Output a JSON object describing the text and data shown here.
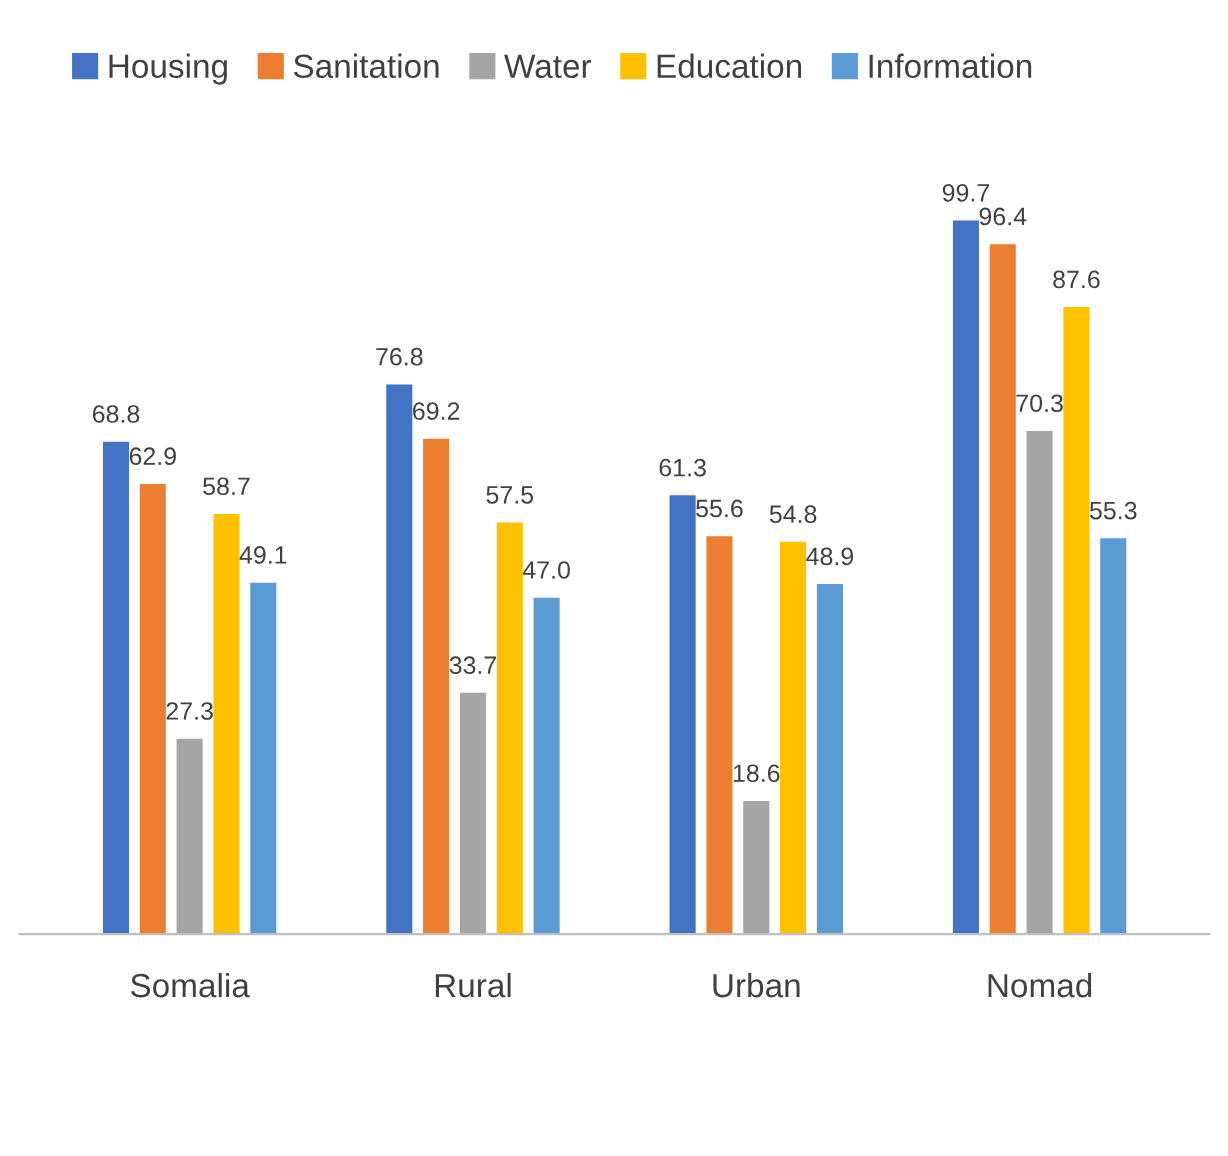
{
  "chart_data": {
    "type": "bar",
    "categories": [
      "Somalia",
      "Rural",
      "Urban",
      "Nomad"
    ],
    "series": [
      {
        "name": "Housing",
        "color": "#4472c4",
        "values": [
          68.8,
          76.8,
          61.3,
          99.7
        ],
        "value_labels": [
          "68.8",
          "76.8",
          "61.3",
          "99.7"
        ]
      },
      {
        "name": "Sanitation",
        "color": "#ed7d31",
        "values": [
          62.9,
          69.2,
          55.6,
          96.4
        ],
        "value_labels": [
          "62.9",
          "69.2",
          "55.6",
          "96.4"
        ]
      },
      {
        "name": "Water",
        "color": "#a5a5a5",
        "values": [
          27.3,
          33.7,
          18.6,
          70.3
        ],
        "value_labels": [
          "27.3",
          "33.7",
          "18.6",
          "70.3"
        ]
      },
      {
        "name": "Education",
        "color": "#ffc000",
        "values": [
          58.7,
          57.5,
          54.8,
          87.6
        ],
        "value_labels": [
          "58.7",
          "57.5",
          "54.8",
          "87.6"
        ]
      },
      {
        "name": "Information",
        "color": "#5b9bd5",
        "values": [
          49.1,
          47.0,
          48.9,
          55.3
        ],
        "value_labels": [
          "49.1",
          "47.0",
          "48.9",
          "55.3"
        ]
      }
    ],
    "legend": "top left",
    "grid": false
  }
}
